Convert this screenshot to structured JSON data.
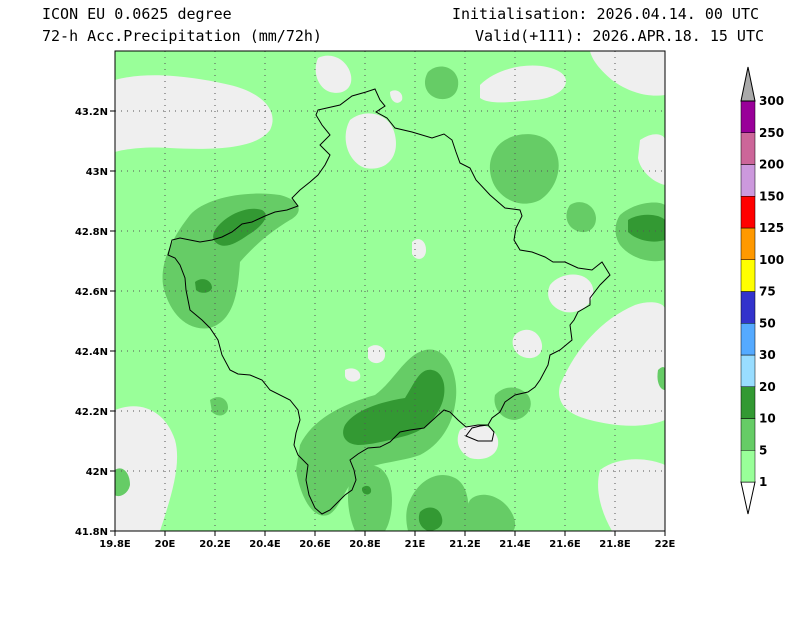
{
  "header": {
    "model": "ICON EU 0.0625 degree",
    "variable": "72-h Acc.Precipitation (mm/72h)",
    "initialisation": "Initialisation: 2026.04.14. 00 UTC",
    "valid": "Valid(+111): 2026.APR.18. 15 UTC"
  },
  "map": {
    "lon_range": [
      19.8,
      22.0
    ],
    "lat_range": [
      41.8,
      43.4
    ],
    "x_ticks": [
      {
        "value": 19.8,
        "label": "19.8E"
      },
      {
        "value": 20.0,
        "label": "20E"
      },
      {
        "value": 20.2,
        "label": "20.2E"
      },
      {
        "value": 20.4,
        "label": "20.4E"
      },
      {
        "value": 20.6,
        "label": "20.6E"
      },
      {
        "value": 20.8,
        "label": "20.8E"
      },
      {
        "value": 21.0,
        "label": "21E"
      },
      {
        "value": 21.2,
        "label": "21.2E"
      },
      {
        "value": 21.4,
        "label": "21.4E"
      },
      {
        "value": 21.6,
        "label": "21.6E"
      },
      {
        "value": 21.8,
        "label": "21.8E"
      },
      {
        "value": 22.0,
        "label": "22E"
      }
    ],
    "y_ticks": [
      {
        "value": 41.8,
        "label": "41.8N"
      },
      {
        "value": 42.0,
        "label": "42N"
      },
      {
        "value": 42.2,
        "label": "42.2N"
      },
      {
        "value": 42.4,
        "label": "42.4N"
      },
      {
        "value": 42.6,
        "label": "42.6N"
      },
      {
        "value": 42.8,
        "label": "42.8N"
      },
      {
        "value": 43.0,
        "label": "43N"
      },
      {
        "value": 43.2,
        "label": "43.2N"
      }
    ],
    "gridlines": true,
    "colors": {
      "below_1": "#efefef",
      "c1_5": "#99ff99",
      "c5_10": "#66cc66",
      "c10_20": "#339933"
    }
  },
  "colorbar": {
    "levels": [
      {
        "label": "1",
        "color": "#99ff99"
      },
      {
        "label": "5",
        "color": "#66cc66"
      },
      {
        "label": "10",
        "color": "#339933"
      },
      {
        "label": "20",
        "color": "#99ddff"
      },
      {
        "label": "30",
        "color": "#55aaff"
      },
      {
        "label": "50",
        "color": "#3333cc"
      },
      {
        "label": "75",
        "color": "#ffff00"
      },
      {
        "label": "100",
        "color": "#ff9900"
      },
      {
        "label": "125",
        "color": "#ff0000"
      },
      {
        "label": "150",
        "color": "#cc99dd"
      },
      {
        "label": "200",
        "color": "#cc6699"
      },
      {
        "label": "250",
        "color": "#990099"
      },
      {
        "label": "300",
        "color": "#aaaaaa"
      }
    ],
    "under_color": "#ffffff"
  }
}
